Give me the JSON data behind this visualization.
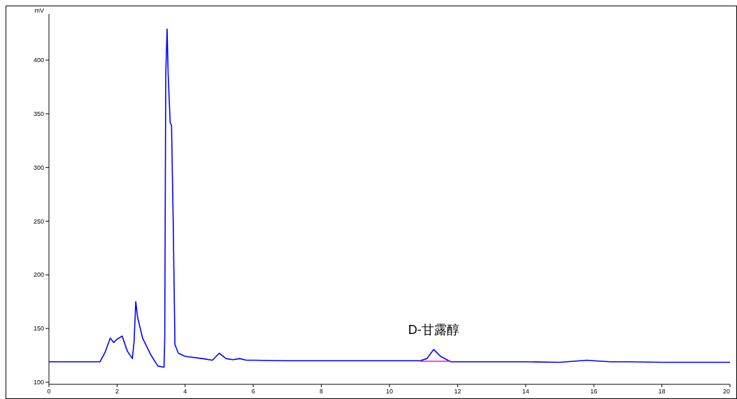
{
  "chart_data": {
    "type": "line",
    "ylabel": "mV",
    "xlim": [
      0,
      20
    ],
    "ylim": [
      98,
      443
    ],
    "xticks": [
      0,
      2,
      4,
      6,
      8,
      10,
      12,
      14,
      16,
      18,
      20
    ],
    "yticks": [
      100,
      150,
      200,
      250,
      300,
      350,
      400
    ],
    "grid": false,
    "series": [
      {
        "color": "#0000ff",
        "x": [
          0,
          1.5,
          1.65,
          1.8,
          1.9,
          2.0,
          2.15,
          2.3,
          2.45,
          2.5,
          2.55,
          2.6,
          2.75,
          3.0,
          3.2,
          3.38,
          3.4,
          3.43,
          3.47,
          3.5,
          3.56,
          3.6,
          3.65,
          3.7,
          3.8,
          4.0,
          4.5,
          4.8,
          5.0,
          5.2,
          5.4,
          5.6,
          5.8,
          6,
          7,
          8,
          9,
          10,
          10.9,
          11.1,
          11.3,
          11.5,
          11.8,
          12,
          13,
          14,
          15,
          15.8,
          16,
          16.5,
          17,
          18,
          19,
          20
        ],
        "values": [
          119,
          119,
          128,
          141,
          137,
          140,
          143,
          129,
          122,
          138,
          175,
          161,
          141,
          125,
          115,
          114,
          140,
          387,
          429,
          387,
          342,
          339,
          247,
          135,
          127,
          124,
          122,
          120.5,
          127,
          122,
          121,
          122,
          120.5,
          120.5,
          120,
          120,
          120,
          120,
          120,
          122,
          130.5,
          124,
          119,
          119,
          119,
          119,
          118.5,
          120.5,
          120,
          119,
          119,
          118.5,
          118.5,
          118.5
        ]
      },
      {
        "color": "#ff00ff",
        "x": [
          10.9,
          11.8
        ],
        "values": [
          119.5,
          119.5
        ]
      }
    ],
    "annotations": [
      {
        "text": "D-甘露醇",
        "x": 11.3,
        "y": 130.5
      }
    ]
  }
}
